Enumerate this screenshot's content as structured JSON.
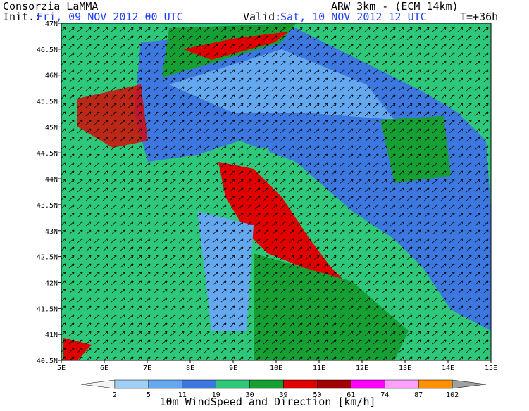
{
  "header": {
    "title": "Consorzia LaMMA",
    "model": "ARW 3km - (ECM 14km)",
    "init_label": "Init.:",
    "init": "Fri, 09 NOV 2012  00 UTC",
    "valid_label": "Valid:",
    "valid": "Sat, 10 NOV 2012  12 UTC",
    "lead": "T=+36h"
  },
  "map": {
    "lat_labels": [
      "47N",
      "46.5N",
      "46N",
      "45.5N",
      "45N",
      "44.5N",
      "44N",
      "43.5N",
      "43N",
      "42.5N",
      "42N",
      "41.5N",
      "41N",
      "40.5N"
    ],
    "lon_labels": [
      "5E",
      "6E",
      "7E",
      "8E",
      "9E",
      "10E",
      "11E",
      "12E",
      "13E",
      "14E",
      "15E"
    ]
  },
  "colorbar": {
    "levels": [
      2,
      5,
      11,
      19,
      30,
      39,
      50,
      61,
      74,
      87,
      102
    ],
    "colors": [
      "#f4f4f4",
      "#a0d0f8",
      "#64a8f0",
      "#3c78e0",
      "#2ec87a",
      "#16a034",
      "#e00000",
      "#a00000",
      "#ff00ff",
      "#ffa0ff",
      "#ff9000",
      "#a0a0a0"
    ],
    "caption": "10m WindSpeed and Direction [km/h]"
  }
}
